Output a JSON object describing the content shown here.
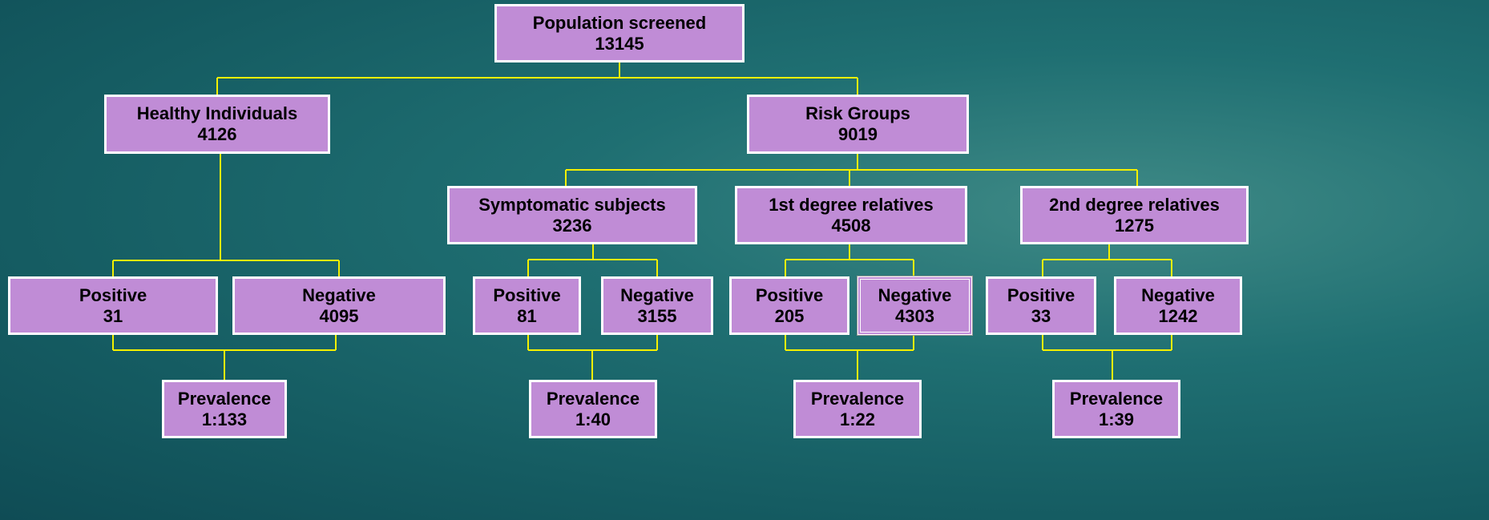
{
  "nodes": [
    {
      "label": "Population screened",
      "value": 13145
    },
    {
      "label": "Healthy Individuals",
      "value": 4126
    },
    {
      "label": "Risk Groups",
      "value": 9019
    },
    {
      "label": "Symptomatic subjects",
      "value": 3236
    },
    {
      "label": "1st degree relatives",
      "value": 4508
    },
    {
      "label": "2nd degree relatives",
      "value": 1275
    },
    {
      "label": "Positive",
      "value": 31
    },
    {
      "label": "Negative",
      "value": 4095
    },
    {
      "label": "Positive",
      "value": 81
    },
    {
      "label": "Negative",
      "value": 3155
    },
    {
      "label": "Positive",
      "value": 205
    },
    {
      "label": "Negative",
      "value": 4303
    },
    {
      "label": "Positive",
      "value": 33
    },
    {
      "label": "Negative",
      "value": 1242
    },
    {
      "label": "Prevalence",
      "value": "1:133"
    },
    {
      "label": "Prevalence",
      "value": "1:40"
    },
    {
      "label": "Prevalence",
      "value": "1:22"
    },
    {
      "label": "Prevalence",
      "value": "1:39"
    }
  ]
}
